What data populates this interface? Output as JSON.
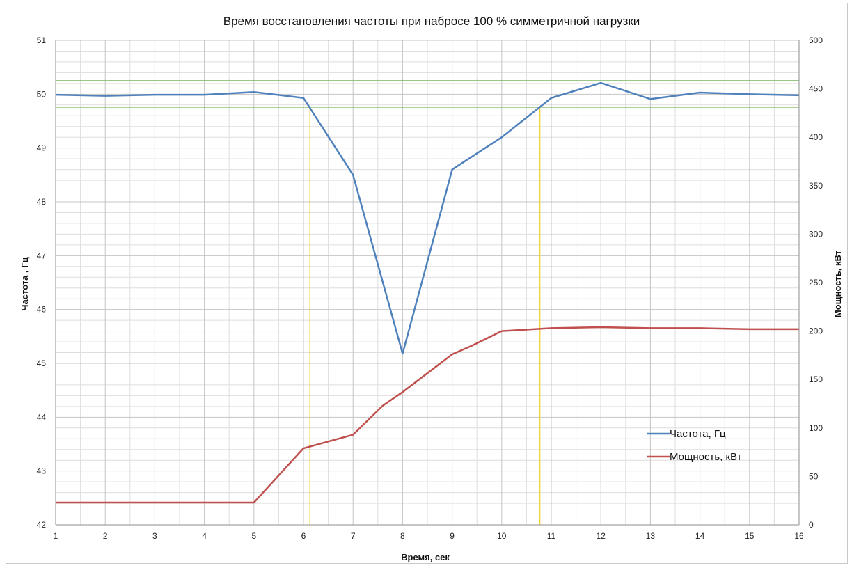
{
  "chart_data": {
    "type": "line",
    "title": "Время восстановления частоты при набросе 100 % симметричной нагрузки",
    "xlabel": "Время, сек",
    "ylabel_left": "Частота , Гц",
    "ylabel_right": "Мощность, кВт",
    "xlim": [
      1,
      16
    ],
    "ylim_left": [
      42,
      51
    ],
    "ylim_right": [
      0,
      500
    ],
    "x_ticks": [
      "1",
      "2",
      "3",
      "4",
      "5",
      "6",
      "7",
      "8",
      "9",
      "10",
      "11",
      "12",
      "13",
      "14",
      "15",
      "16"
    ],
    "y_left_ticks": [
      "42",
      "43",
      "44",
      "45",
      "46",
      "47",
      "48",
      "49",
      "50",
      "51"
    ],
    "y_right_ticks": [
      "0",
      "50",
      "100",
      "150",
      "200",
      "250",
      "300",
      "350",
      "400",
      "450",
      "500"
    ],
    "grid": true,
    "legend_position": "bottom-right",
    "series": [
      {
        "name": "Частота, Гц",
        "axis": "left",
        "color": "#4f81bd",
        "points": [
          [
            1,
            49.99
          ],
          [
            2,
            49.97
          ],
          [
            3,
            49.99
          ],
          [
            4,
            49.99
          ],
          [
            5,
            50.04
          ],
          [
            6,
            49.93
          ],
          [
            7,
            48.5
          ],
          [
            8,
            45.18
          ],
          [
            9,
            48.6
          ],
          [
            10,
            49.2
          ],
          [
            11,
            49.93
          ],
          [
            12,
            50.21
          ],
          [
            13,
            49.91
          ],
          [
            14,
            50.03
          ],
          [
            15,
            50.0
          ],
          [
            16,
            49.98
          ]
        ]
      },
      {
        "name": "Мощность, кВт",
        "axis": "right",
        "color": "#c0504d",
        "points": [
          [
            1,
            23
          ],
          [
            2,
            23
          ],
          [
            3,
            23
          ],
          [
            4,
            23
          ],
          [
            5,
            23
          ],
          [
            6,
            79
          ],
          [
            7,
            93
          ],
          [
            7.6,
            123
          ],
          [
            8,
            137
          ],
          [
            9,
            176
          ],
          [
            9.4,
            185
          ],
          [
            10,
            200
          ],
          [
            11,
            203
          ],
          [
            12,
            204
          ],
          [
            13,
            203
          ],
          [
            14,
            203
          ],
          [
            15,
            202
          ],
          [
            16,
            202
          ]
        ]
      }
    ],
    "reference_lines": {
      "horizontal_freq": [
        50.25,
        49.76
      ],
      "horizontal_color": "#77b55a",
      "vertical_time": [
        6.13,
        10.77
      ],
      "vertical_color": "#f5d33b"
    }
  }
}
